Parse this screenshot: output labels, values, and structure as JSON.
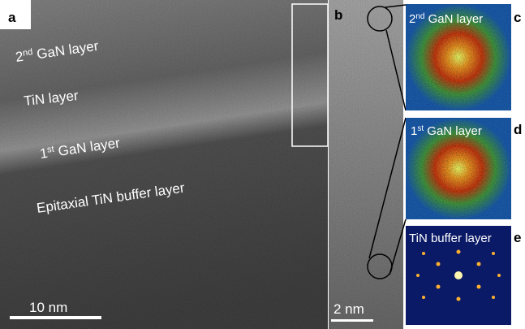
{
  "panels": {
    "a": {
      "label": "a",
      "layers": [
        {
          "number": "2",
          "sup": "nd",
          "rest": " GaN layer"
        },
        {
          "rest": "TiN layer"
        },
        {
          "number": "1",
          "sup": "st",
          "rest": " GaN layer"
        },
        {
          "rest": "Epitaxial TiN buffer layer"
        }
      ],
      "scale_bar": "10 nm"
    },
    "b": {
      "label": "b",
      "scale_bar": "2 nm"
    },
    "c": {
      "label": "c",
      "title": {
        "number": "2",
        "sup": "nd",
        "rest": " GaN layer"
      }
    },
    "d": {
      "label": "d",
      "title": {
        "number": "1",
        "sup": "st",
        "rest": " GaN layer"
      }
    },
    "e": {
      "label": "e",
      "title": {
        "rest": "TiN buffer layer"
      }
    }
  }
}
